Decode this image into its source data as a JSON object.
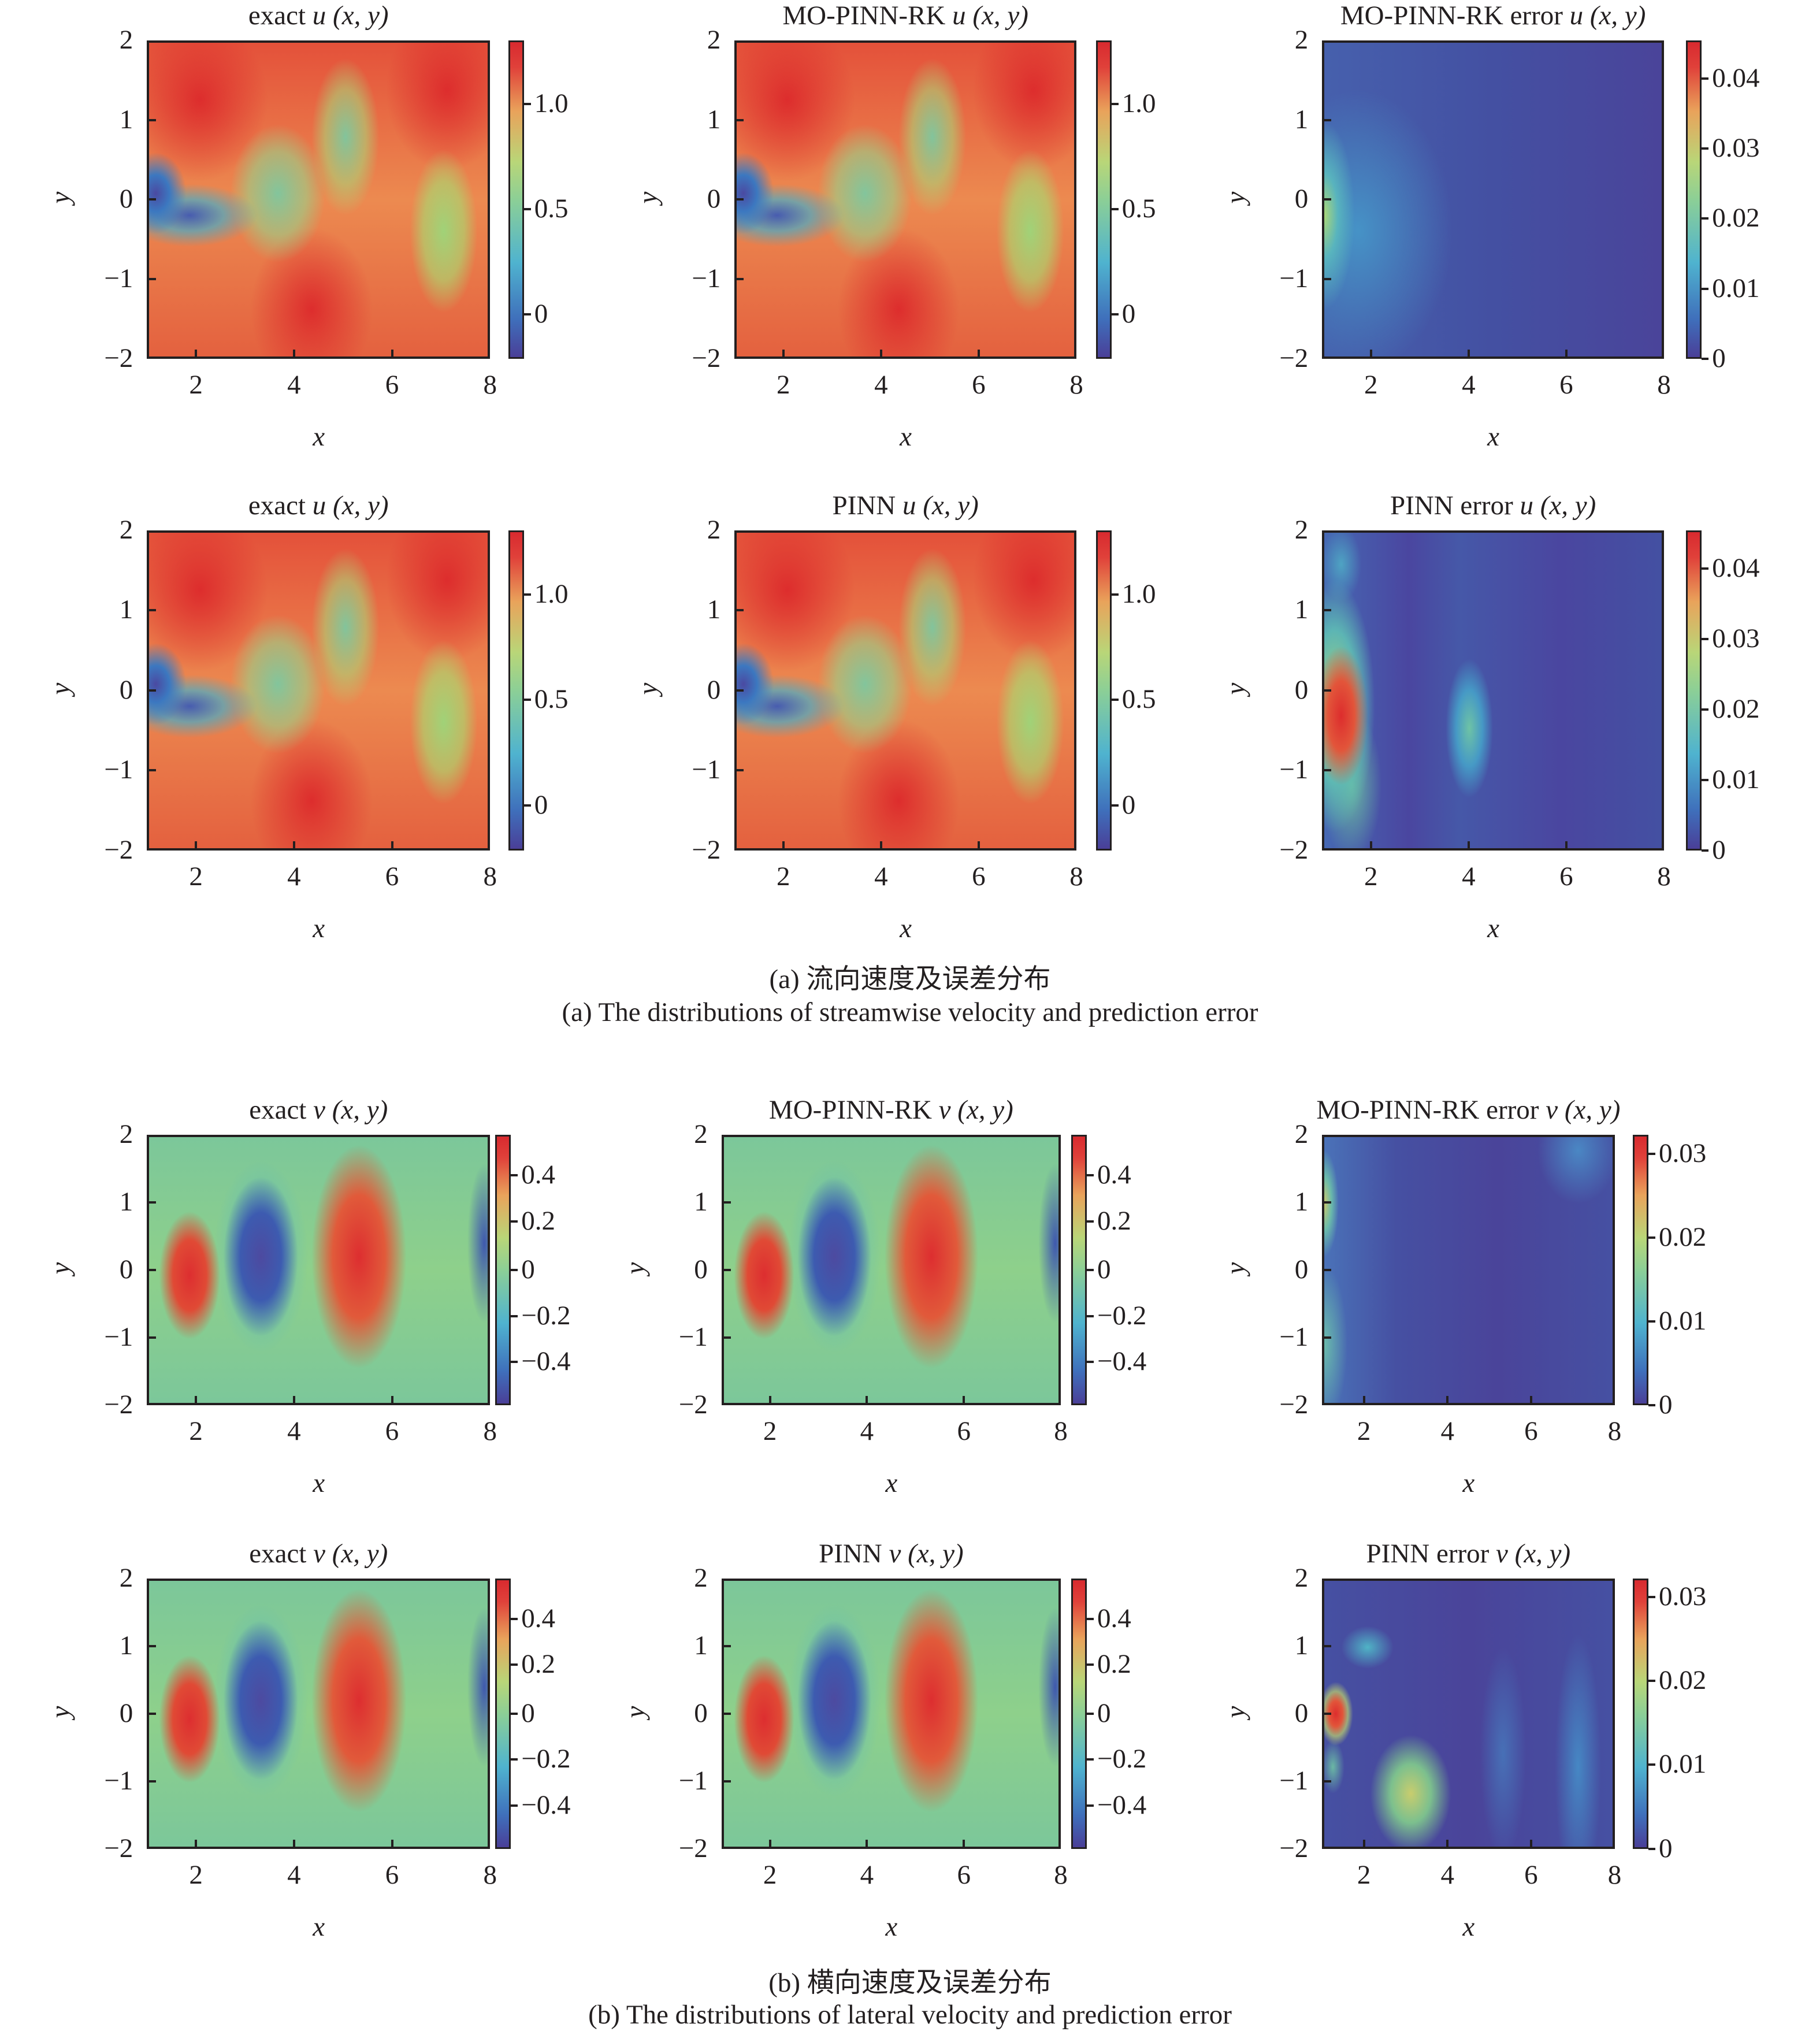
{
  "chart_data": [
    {
      "type": "heatmap",
      "id": "a-r1-c1",
      "title": "exact u (x, y)",
      "xlabel": "x",
      "ylabel": "y",
      "xlim": [
        1,
        8
      ],
      "ylim": [
        -2,
        2
      ],
      "xticks": [
        "2",
        "4",
        "6",
        "8"
      ],
      "yticks": [
        "2",
        "1",
        "0",
        "−1",
        "−2"
      ],
      "colorbar": {
        "ticks": [
          "1.0",
          "0.5",
          "0"
        ],
        "range": [
          -0.25,
          1.3
        ]
      }
    },
    {
      "type": "heatmap",
      "id": "a-r1-c2",
      "title": "MO-PINN-RK u (x, y)",
      "xlabel": "x",
      "ylabel": "y",
      "xlim": [
        1,
        8
      ],
      "ylim": [
        -2,
        2
      ],
      "xticks": [
        "2",
        "4",
        "6",
        "8"
      ],
      "yticks": [
        "2",
        "1",
        "0",
        "−1",
        "−2"
      ],
      "colorbar": {
        "ticks": [
          "1.0",
          "0.5",
          "0"
        ],
        "range": [
          -0.25,
          1.3
        ]
      }
    },
    {
      "type": "heatmap",
      "id": "a-r1-c3",
      "title": "MO-PINN-RK error u (x, y)",
      "xlabel": "x",
      "ylabel": "y",
      "xlim": [
        1,
        8
      ],
      "ylim": [
        -2,
        2
      ],
      "xticks": [
        "2",
        "4",
        "6",
        "8"
      ],
      "yticks": [
        "2",
        "1",
        "0",
        "−1",
        "−2"
      ],
      "colorbar": {
        "ticks": [
          "0.04",
          "0.03",
          "0.02",
          "0.01",
          "0"
        ],
        "range": [
          0,
          0.045
        ]
      }
    },
    {
      "type": "heatmap",
      "id": "a-r2-c1",
      "title": "exact u (x, y)",
      "xlabel": "x",
      "ylabel": "y",
      "xlim": [
        1,
        8
      ],
      "ylim": [
        -2,
        2
      ],
      "xticks": [
        "2",
        "4",
        "6",
        "8"
      ],
      "yticks": [
        "2",
        "1",
        "0",
        "−1",
        "−2"
      ],
      "colorbar": {
        "ticks": [
          "1.0",
          "0.5",
          "0"
        ],
        "range": [
          -0.25,
          1.3
        ]
      }
    },
    {
      "type": "heatmap",
      "id": "a-r2-c2",
      "title": "PINN u (x, y)",
      "xlabel": "x",
      "ylabel": "y",
      "xlim": [
        1,
        8
      ],
      "ylim": [
        -2,
        2
      ],
      "xticks": [
        "2",
        "4",
        "6",
        "8"
      ],
      "yticks": [
        "2",
        "1",
        "0",
        "−1",
        "−2"
      ],
      "colorbar": {
        "ticks": [
          "1.0",
          "0.5",
          "0"
        ],
        "range": [
          -0.25,
          1.3
        ]
      }
    },
    {
      "type": "heatmap",
      "id": "a-r2-c3",
      "title": "PINN error u (x, y)",
      "xlabel": "x",
      "ylabel": "y",
      "xlim": [
        1,
        8
      ],
      "ylim": [
        -2,
        2
      ],
      "xticks": [
        "2",
        "4",
        "6",
        "8"
      ],
      "yticks": [
        "2",
        "1",
        "0",
        "−1",
        "−2"
      ],
      "colorbar": {
        "ticks": [
          "0.04",
          "0.03",
          "0.02",
          "0.01",
          "0"
        ],
        "range": [
          0,
          0.045
        ]
      }
    },
    {
      "type": "heatmap",
      "id": "b-r1-c1",
      "title": "exact v (x, y)",
      "xlabel": "x",
      "ylabel": "y",
      "xlim": [
        1,
        8
      ],
      "ylim": [
        -2,
        2
      ],
      "xticks": [
        "2",
        "4",
        "6",
        "8"
      ],
      "yticks": [
        "2",
        "1",
        "0",
        "−1",
        "−2"
      ],
      "colorbar": {
        "ticks": [
          "0.4",
          "0.2",
          "0",
          "−0.2",
          "−0.4"
        ],
        "range": [
          -0.58,
          0.58
        ]
      }
    },
    {
      "type": "heatmap",
      "id": "b-r1-c2",
      "title": "MO-PINN-RK v (x, y)",
      "xlabel": "x",
      "ylabel": "y",
      "xlim": [
        1,
        8
      ],
      "ylim": [
        -2,
        2
      ],
      "xticks": [
        "2",
        "4",
        "6",
        "8"
      ],
      "yticks": [
        "2",
        "1",
        "0",
        "−1",
        "−2"
      ],
      "colorbar": {
        "ticks": [
          "0.4",
          "0.2",
          "0",
          "−0.2",
          "−0.4"
        ],
        "range": [
          -0.58,
          0.58
        ]
      }
    },
    {
      "type": "heatmap",
      "id": "b-r1-c3",
      "title": "MO-PINN-RK error v (x, y)",
      "xlabel": "x",
      "ylabel": "y",
      "xlim": [
        1,
        8
      ],
      "ylim": [
        -2,
        2
      ],
      "xticks": [
        "2",
        "4",
        "6",
        "8"
      ],
      "yticks": [
        "2",
        "1",
        "0",
        "−1",
        "−2"
      ],
      "colorbar": {
        "ticks": [
          "0.03",
          "0.02",
          "0.01",
          "0"
        ],
        "range": [
          0,
          0.032
        ]
      }
    },
    {
      "type": "heatmap",
      "id": "b-r2-c1",
      "title": "exact v (x, y)",
      "xlabel": "x",
      "ylabel": "y",
      "xlim": [
        1,
        8
      ],
      "ylim": [
        -2,
        2
      ],
      "xticks": [
        "2",
        "4",
        "6",
        "8"
      ],
      "yticks": [
        "2",
        "1",
        "0",
        "−1",
        "−2"
      ],
      "colorbar": {
        "ticks": [
          "0.4",
          "0.2",
          "0",
          "−0.2",
          "−0.4"
        ],
        "range": [
          -0.58,
          0.58
        ]
      }
    },
    {
      "type": "heatmap",
      "id": "b-r2-c2",
      "title": "PINN v (x, y)",
      "xlabel": "x",
      "ylabel": "y",
      "xlim": [
        1,
        8
      ],
      "ylim": [
        -2,
        2
      ],
      "xticks": [
        "2",
        "4",
        "6",
        "8"
      ],
      "yticks": [
        "2",
        "1",
        "0",
        "−1",
        "−2"
      ],
      "colorbar": {
        "ticks": [
          "0.4",
          "0.2",
          "0",
          "−0.2",
          "−0.4"
        ],
        "range": [
          -0.58,
          0.58
        ]
      }
    },
    {
      "type": "heatmap",
      "id": "b-r2-c3",
      "title": "PINN error v (x, y)",
      "xlabel": "x",
      "ylabel": "y",
      "xlim": [
        1,
        8
      ],
      "ylim": [
        -2,
        2
      ],
      "xticks": [
        "2",
        "4",
        "6",
        "8"
      ],
      "yticks": [
        "2",
        "1",
        "0",
        "−1",
        "−2"
      ],
      "colorbar": {
        "ticks": [
          "0.03",
          "0.02",
          "0.01",
          "0"
        ],
        "range": [
          0,
          0.032
        ]
      }
    }
  ],
  "captions": {
    "a_cn": "(a) 流向速度及误差分布",
    "a_en": "(a) The distributions of streamwise velocity and prediction error",
    "b_cn": "(b) 横向速度及误差分布",
    "b_en": "(b) The distributions of lateral velocity and prediction error"
  },
  "titles": {
    "a11": {
      "pre": "exact ",
      "var": "u",
      "args": " (x, y)"
    },
    "a12": {
      "pre": "MO-PINN-RK ",
      "var": "u",
      "args": " (x, y)"
    },
    "a13": {
      "pre": "MO-PINN-RK error ",
      "var": "u",
      "args": " (x, y)"
    },
    "a21": {
      "pre": "exact ",
      "var": "u",
      "args": " (x, y)"
    },
    "a22": {
      "pre": "PINN ",
      "var": "u",
      "args": " (x, y)"
    },
    "a23": {
      "pre": "PINN error ",
      "var": "u",
      "args": " (x, y)"
    },
    "b11": {
      "pre": "exact ",
      "var": "v",
      "args": " (x, y)"
    },
    "b12": {
      "pre": "MO-PINN-RK ",
      "var": "v",
      "args": " (x, y)"
    },
    "b13": {
      "pre": "MO-PINN-RK error ",
      "var": "v",
      "args": " (x, y)"
    },
    "b21": {
      "pre": "exact ",
      "var": "v",
      "args": " (x, y)"
    },
    "b22": {
      "pre": "PINN ",
      "var": "v",
      "args": " (x, y)"
    },
    "b23": {
      "pre": "PINN error ",
      "var": "v",
      "args": " (x, y)"
    }
  },
  "axes": {
    "x": "x",
    "y": "y",
    "xticks": [
      "2",
      "4",
      "6",
      "8"
    ],
    "yticks": [
      "2",
      "1",
      "0",
      "−1",
      "−2"
    ]
  },
  "cbticks": {
    "u": [
      "1.0",
      "0.5",
      "0"
    ],
    "uerr": [
      "0.04",
      "0.03",
      "0.02",
      "0.01",
      "0"
    ],
    "v": [
      "0.4",
      "0.2",
      "0",
      "−0.2",
      "−0.4"
    ],
    "verr": [
      "0.03",
      "0.02",
      "0.01",
      "0"
    ]
  }
}
